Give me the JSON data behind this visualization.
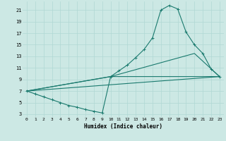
{
  "xlabel": "Humidex (Indice chaleur)",
  "bg_color": "#cce8e4",
  "grid_color": "#b0d8d4",
  "line_color": "#1a7a6e",
  "xlim": [
    -0.5,
    23.5
  ],
  "ylim": [
    2.5,
    22.5
  ],
  "xticks": [
    0,
    1,
    2,
    3,
    4,
    5,
    6,
    7,
    8,
    9,
    10,
    11,
    12,
    13,
    14,
    15,
    16,
    17,
    18,
    19,
    20,
    21,
    22,
    23
  ],
  "yticks": [
    3,
    5,
    7,
    9,
    11,
    13,
    15,
    17,
    19,
    21
  ],
  "line1_x": [
    0,
    1,
    2,
    3,
    4,
    5,
    6,
    7,
    8,
    9,
    10,
    11,
    12,
    13,
    14,
    15,
    16,
    17,
    18,
    19,
    20,
    21,
    22,
    23
  ],
  "line1_y": [
    7,
    6.5,
    6,
    5.5,
    5,
    4.5,
    4.2,
    3.8,
    3.5,
    3.2,
    9.5,
    10.5,
    11.5,
    12.8,
    14.2,
    16.2,
    21.0,
    21.8,
    21.2,
    17.2,
    15.0,
    13.5,
    10.8,
    9.5
  ],
  "line2_x": [
    0,
    23
  ],
  "line2_y": [
    7,
    9.5
  ],
  "line3_x": [
    0,
    10,
    23
  ],
  "line3_y": [
    7,
    9.5,
    9.5
  ],
  "line4_x": [
    0,
    10,
    20,
    23
  ],
  "line4_y": [
    7,
    9.5,
    13.5,
    9.5
  ]
}
